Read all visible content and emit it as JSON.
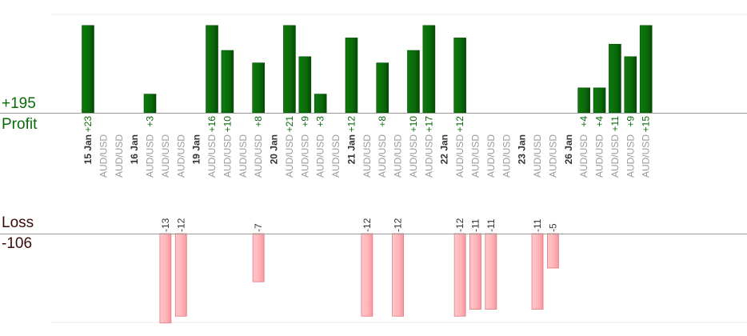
{
  "summary": {
    "profit_total": "+195",
    "profit_label": "Profit",
    "loss_label": "Loss",
    "loss_total": "-106"
  },
  "colors": {
    "profit_bar": "#0a6a0a",
    "loss_bar": "#ffb3b8",
    "profit_text": "#0a6a0a",
    "loss_text": "#3a0a0a",
    "axis": "#999999"
  },
  "chart_data": {
    "type": "bar",
    "title": "",
    "xlabel": "",
    "ylabel": "",
    "legend": "none",
    "grid": true,
    "axis_cap": 14,
    "categories": [
      "15 Jan",
      "AUD/USD",
      "AUD/USD",
      "16 Jan",
      "AUD/USD",
      "AUD/USD",
      "AUD/USD",
      "19 Jan",
      "AUD/USD",
      "AUD/USD",
      "AUD/USD",
      "AUD/USD",
      "20 Jan",
      "AUD/USD",
      "AUD/USD",
      "AUD/USD",
      "AUD/USD",
      "21 Jan",
      "AUD/USD",
      "AUD/USD",
      "AUD/USD",
      "AUD/USD",
      "AUD/USD",
      "22 Jan",
      "AUD/USD",
      "AUD/USD",
      "AUD/USD",
      "AUD/USD",
      "23 Jan",
      "AUD/USD",
      "AUD/USD",
      "26 Jan",
      "AUD/USD",
      "AUD/USD",
      "AUD/USD",
      "AUD/USD",
      "AUD/USD"
    ],
    "date_categories": [
      "15 Jan",
      "16 Jan",
      "19 Jan",
      "20 Jan",
      "21 Jan",
      "22 Jan",
      "23 Jan",
      "26 Jan"
    ],
    "series": [
      {
        "name": "Profit",
        "values": [
          23,
          null,
          null,
          null,
          3,
          null,
          null,
          null,
          16,
          10,
          null,
          8,
          null,
          21,
          9,
          3,
          null,
          12,
          null,
          8,
          null,
          10,
          17,
          null,
          12,
          null,
          null,
          null,
          null,
          null,
          null,
          null,
          4,
          4,
          11,
          9,
          15
        ]
      },
      {
        "name": "Loss",
        "values": [
          null,
          null,
          null,
          null,
          null,
          -13,
          -12,
          null,
          null,
          null,
          null,
          -7,
          null,
          null,
          null,
          null,
          null,
          null,
          -12,
          null,
          -12,
          null,
          null,
          null,
          -12,
          -11,
          -11,
          null,
          null,
          -11,
          -5,
          null,
          null,
          null,
          null,
          null,
          null
        ]
      }
    ],
    "profit_labels": [
      {
        "i": 0,
        "text": "+23"
      },
      {
        "i": 4,
        "text": "+3"
      },
      {
        "i": 8,
        "text": "+16"
      },
      {
        "i": 9,
        "text": "+10"
      },
      {
        "i": 11,
        "text": "+8"
      },
      {
        "i": 13,
        "text": "+21"
      },
      {
        "i": 14,
        "text": "+9"
      },
      {
        "i": 15,
        "text": "+3"
      },
      {
        "i": 17,
        "text": "+12"
      },
      {
        "i": 19,
        "text": "+8"
      },
      {
        "i": 21,
        "text": "+10"
      },
      {
        "i": 22,
        "text": "+17"
      },
      {
        "i": 24,
        "text": "+12"
      },
      {
        "i": 32,
        "text": "+4"
      },
      {
        "i": 33,
        "text": "+4"
      },
      {
        "i": 34,
        "text": "+11"
      },
      {
        "i": 35,
        "text": "+9"
      },
      {
        "i": 36,
        "text": "+15"
      }
    ],
    "loss_labels": [
      {
        "i": 5,
        "text": "-13"
      },
      {
        "i": 6,
        "text": "-12"
      },
      {
        "i": 11,
        "text": "-7"
      },
      {
        "i": 18,
        "text": "-12"
      },
      {
        "i": 20,
        "text": "-12"
      },
      {
        "i": 24,
        "text": "-12"
      },
      {
        "i": 25,
        "text": "-11"
      },
      {
        "i": 26,
        "text": "-11"
      },
      {
        "i": 29,
        "text": "-11"
      },
      {
        "i": 30,
        "text": "-5"
      }
    ]
  }
}
